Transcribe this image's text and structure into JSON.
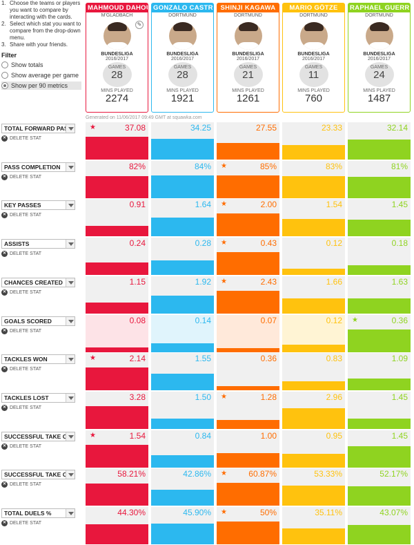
{
  "sidebar": {
    "instructions": [
      {
        "num": "1.",
        "text": "Choose the teams or players you want to compare by interacting with the cards."
      },
      {
        "num": "2.",
        "text": "Select which stat you want to compare from the drop-down menu."
      },
      {
        "num": "3.",
        "text": "Share with your friends."
      }
    ],
    "filter_title": "Filter",
    "options": [
      {
        "label": "Show totals",
        "selected": false
      },
      {
        "label": "Show average per game",
        "selected": false
      },
      {
        "label": "Show per 90 metrics",
        "selected": true
      }
    ]
  },
  "players": [
    {
      "name": "MAHMOUD DAHOU",
      "team": "M'GLADBACH",
      "league": "BUNDESLIGA",
      "season": "2016/2017",
      "games_label": "GAMES",
      "games": "28",
      "mins_label": "MINS PLAYED",
      "mins": "2274",
      "color": "#e8173d",
      "light": "#fde3e7"
    },
    {
      "name": "GONZALO CASTR",
      "team": "DORTMUND",
      "league": "BUNDESLIGA",
      "season": "2016/2017",
      "games_label": "GAMES",
      "games": "28",
      "mins_label": "MINS PLAYED",
      "mins": "1921",
      "color": "#2cb8ef",
      "light": "#e0f4fc"
    },
    {
      "name": "SHINJI KAGAWA",
      "team": "DORTMUND",
      "league": "BUNDESLIGA",
      "season": "2016/2017",
      "games_label": "GAMES",
      "games": "21",
      "mins_label": "MINS PLAYED",
      "mins": "1261",
      "color": "#ff6d00",
      "light": "#ffe9da"
    },
    {
      "name": "MARIO GÖTZE",
      "team": "DORTMUND",
      "league": "BUNDESLIGA",
      "season": "2016/2017",
      "games_label": "GAMES",
      "games": "11",
      "mins_label": "MINS PLAYED",
      "mins": "760",
      "color": "#ffc20e",
      "light": "#fff4d4"
    },
    {
      "name": "RAPHAEL GUERR",
      "team": "DORTMUND",
      "league": "BUNDESLIGA",
      "season": "2016/2017",
      "games_label": "GAMES",
      "games": "24",
      "mins_label": "MINS PLAYED",
      "mins": "1487",
      "color": "#8fd320",
      "light": "#eef9dc"
    }
  ],
  "generated_text": "Generated on 11/06/2017 09:49 GMT at squawka.com",
  "delete_label": "DELETE STAT",
  "stats": [
    {
      "name": "TOTAL FORWARD PAS",
      "values": [
        "37.08",
        "34.25",
        "27.55",
        "23.33",
        "32.14"
      ],
      "bars": [
        1.0,
        0.92,
        0.74,
        0.63,
        0.87
      ],
      "star": 0,
      "faded": []
    },
    {
      "name": "PASS COMPLETION",
      "values": [
        "82%",
        "84%",
        "85%",
        "83%",
        "81%"
      ],
      "bars": [
        0.96,
        0.99,
        1.0,
        0.98,
        0.95
      ],
      "star": 2,
      "faded": []
    },
    {
      "name": "KEY PASSES",
      "values": [
        "0.91",
        "1.64",
        "2.00",
        "1.54",
        "1.45"
      ],
      "bars": [
        0.46,
        0.82,
        1.0,
        0.77,
        0.73
      ],
      "star": 2,
      "faded": []
    },
    {
      "name": "ASSISTS",
      "values": [
        "0.24",
        "0.28",
        "0.43",
        "0.12",
        "0.18"
      ],
      "bars": [
        0.56,
        0.65,
        1.0,
        0.28,
        0.42
      ],
      "star": 2,
      "faded": []
    },
    {
      "name": "CHANCES CREATED",
      "values": [
        "1.15",
        "1.92",
        "2.43",
        "1.66",
        "1.63"
      ],
      "bars": [
        0.47,
        0.79,
        1.0,
        0.68,
        0.67
      ],
      "star": 2,
      "faded": []
    },
    {
      "name": "GOALS SCORED",
      "values": [
        "0.08",
        "0.14",
        "0.07",
        "0.12",
        "0.36"
      ],
      "bars": [
        0.22,
        0.39,
        0.19,
        0.33,
        1.0
      ],
      "star": 4,
      "faded": [
        0,
        1,
        2,
        3
      ]
    },
    {
      "name": "TACKLES WON",
      "values": [
        "2.14",
        "1.55",
        "0.36",
        "0.83",
        "1.09"
      ],
      "bars": [
        1.0,
        0.72,
        0.17,
        0.39,
        0.51
      ],
      "star": 0,
      "faded": []
    },
    {
      "name": "TACKLES LOST",
      "values": [
        "3.28",
        "1.50",
        "1.28",
        "2.96",
        "1.45"
      ],
      "bars": [
        1.0,
        0.46,
        0.39,
        0.9,
        0.44
      ],
      "star": 2,
      "faded": []
    },
    {
      "name": "SUCCESSFUL TAKE O",
      "values": [
        "1.54",
        "0.84",
        "1.00",
        "0.95",
        "1.45"
      ],
      "bars": [
        1.0,
        0.55,
        0.65,
        0.62,
        0.94
      ],
      "star": 0,
      "faded": []
    },
    {
      "name": "SUCCESSFUL TAKE O",
      "values": [
        "58.21%",
        "42.86%",
        "60.87%",
        "53.33%",
        "52.17%"
      ],
      "bars": [
        0.96,
        0.7,
        1.0,
        0.88,
        0.86
      ],
      "star": 2,
      "faded": []
    },
    {
      "name": "TOTAL DUELS %",
      "values": [
        "44.30%",
        "45.90%",
        "50%",
        "35.11%",
        "43.07%"
      ],
      "bars": [
        0.89,
        0.92,
        1.0,
        0.7,
        0.86
      ],
      "star": 2,
      "faded": []
    }
  ]
}
